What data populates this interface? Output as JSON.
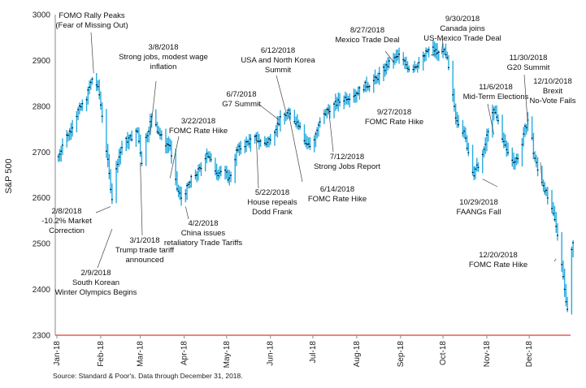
{
  "chart_data": {
    "type": "line",
    "style": "hi-lo bars (daily range) with close markers",
    "title": "",
    "xlabel": "",
    "ylabel": "S&P 500",
    "ylim": [
      2300,
      3000
    ],
    "yticks": [
      "2300",
      "2400",
      "2500",
      "2600",
      "2700",
      "2800",
      "2900",
      "3000"
    ],
    "xticks": [
      {
        "label": "Jan-18",
        "day": 0
      },
      {
        "label": "Feb-18",
        "day": 31
      },
      {
        "label": "Mar-18",
        "day": 59
      },
      {
        "label": "Apr-18",
        "day": 90
      },
      {
        "label": "May-18",
        "day": 120
      },
      {
        "label": "Jun-18",
        "day": 151
      },
      {
        "label": "Jul-18",
        "day": 181
      },
      {
        "label": "Aug-18",
        "day": 212
      },
      {
        "label": "Sep-18",
        "day": 243
      },
      {
        "label": "Oct-18",
        "day": 273
      },
      {
        "label": "Nov-18",
        "day": 304
      },
      {
        "label": "Dec-18",
        "day": 334
      }
    ],
    "grid": false,
    "legend": "none",
    "colors": {
      "bar": "#29ABE2",
      "close": "#000000",
      "baseline": "#E03C31"
    },
    "source": "Source: Standard & Poor's. Data through December 31, 2018.",
    "anchors": [
      [
        1,
        2690
      ],
      [
        5,
        2725
      ],
      [
        10,
        2750
      ],
      [
        15,
        2790
      ],
      [
        20,
        2810
      ],
      [
        26,
        2870
      ],
      [
        30,
        2825
      ],
      [
        33,
        2760
      ],
      [
        37,
        2650
      ],
      [
        39,
        2600
      ],
      [
        43,
        2680
      ],
      [
        47,
        2720
      ],
      [
        54,
        2735
      ],
      [
        57,
        2745
      ],
      [
        60,
        2680
      ],
      [
        63,
        2730
      ],
      [
        68,
        2785
      ],
      [
        71,
        2750
      ],
      [
        76,
        2720
      ],
      [
        80,
        2715
      ],
      [
        82,
        2660
      ],
      [
        85,
        2620
      ],
      [
        88,
        2600
      ],
      [
        92,
        2620
      ],
      [
        95,
        2640
      ],
      [
        98,
        2650
      ],
      [
        102,
        2665
      ],
      [
        106,
        2700
      ],
      [
        110,
        2670
      ],
      [
        114,
        2655
      ],
      [
        118,
        2660
      ],
      [
        122,
        2640
      ],
      [
        127,
        2700
      ],
      [
        132,
        2715
      ],
      [
        137,
        2725
      ],
      [
        141,
        2730
      ],
      [
        145,
        2720
      ],
      [
        149,
        2720
      ],
      [
        152,
        2740
      ],
      [
        156,
        2760
      ],
      [
        160,
        2780
      ],
      [
        164,
        2785
      ],
      [
        168,
        2770
      ],
      [
        172,
        2760
      ],
      [
        176,
        2720
      ],
      [
        180,
        2710
      ],
      [
        183,
        2740
      ],
      [
        187,
        2770
      ],
      [
        191,
        2790
      ],
      [
        195,
        2800
      ],
      [
        200,
        2810
      ],
      [
        205,
        2820
      ],
      [
        210,
        2825
      ],
      [
        214,
        2835
      ],
      [
        218,
        2845
      ],
      [
        222,
        2850
      ],
      [
        226,
        2860
      ],
      [
        230,
        2875
      ],
      [
        234,
        2890
      ],
      [
        238,
        2900
      ],
      [
        242,
        2910
      ],
      [
        246,
        2895
      ],
      [
        250,
        2880
      ],
      [
        254,
        2890
      ],
      [
        258,
        2900
      ],
      [
        262,
        2920
      ],
      [
        266,
        2925
      ],
      [
        270,
        2915
      ],
      [
        273,
        2925
      ],
      [
        276,
        2900
      ],
      [
        279,
        2840
      ],
      [
        282,
        2780
      ],
      [
        285,
        2760
      ],
      [
        288,
        2740
      ],
      [
        291,
        2700
      ],
      [
        295,
        2650
      ],
      [
        299,
        2680
      ],
      [
        302,
        2700
      ],
      [
        305,
        2750
      ],
      [
        309,
        2790
      ],
      [
        313,
        2760
      ],
      [
        316,
        2720
      ],
      [
        320,
        2690
      ],
      [
        324,
        2680
      ],
      [
        328,
        2700
      ],
      [
        331,
        2750
      ],
      [
        334,
        2780
      ],
      [
        337,
        2700
      ],
      [
        340,
        2660
      ],
      [
        344,
        2630
      ],
      [
        348,
        2590
      ],
      [
        352,
        2550
      ],
      [
        356,
        2490
      ],
      [
        359,
        2400
      ],
      [
        361,
        2360
      ],
      [
        363,
        2470
      ],
      [
        365,
        2500
      ]
    ],
    "annotations": [
      {
        "id": "fomo-rally-peaks",
        "lines": [
          "FOMO Rally Peaks",
          "(Fear of Missing Out)"
        ],
        "day": 26,
        "value": 2872
      },
      {
        "id": "market-correction",
        "lines": [
          "2/8/2018",
          "-10.2% Market",
          "Correction"
        ],
        "day": 38,
        "value": 2581
      },
      {
        "id": "winter-olympics",
        "lines": [
          "2/9/2018",
          "South Korean",
          "Winter Olympics Begins"
        ],
        "day": 39,
        "value": 2532
      },
      {
        "id": "trump-tariff",
        "lines": [
          "3/1/2018",
          "Trump trade tariff",
          "announced"
        ],
        "day": 59,
        "value": 2677
      },
      {
        "id": "strong-jobs-march",
        "lines": [
          "3/8/2018",
          "Strong jobs, modest wage",
          "inflation"
        ],
        "day": 66,
        "value": 2739
      },
      {
        "id": "fomc-march",
        "lines": [
          "3/22/2018",
          "FOMC Rate Hike"
        ],
        "day": 80,
        "value": 2643
      },
      {
        "id": "china-tariffs",
        "lines": [
          "4/2/2018",
          "China issues",
          "retaliatory  Trade Tariffs"
        ],
        "day": 91,
        "value": 2581
      },
      {
        "id": "g7-summit",
        "lines": [
          "6/7/2018",
          "G7 Summit"
        ],
        "day": 157,
        "value": 2770
      },
      {
        "id": "korea-summit",
        "lines": [
          "6/12/2018",
          "USA and North Korea",
          "Summit"
        ],
        "day": 162,
        "value": 2787
      },
      {
        "id": "dodd-frank",
        "lines": [
          "5/22/2018",
          "House repeals",
          "Dodd Frank"
        ],
        "day": 141,
        "value": 2733
      },
      {
        "id": "fomc-june",
        "lines": [
          "6/14/2018",
          "FOMC Rate Hike"
        ],
        "day": 164,
        "value": 2782
      },
      {
        "id": "strong-jobs-july",
        "lines": [
          "7/12/2018",
          "Strong Jobs Report"
        ],
        "day": 192,
        "value": 2798
      },
      {
        "id": "mexico-trade",
        "lines": [
          "8/27/2018",
          "Mexico Trade Deal"
        ],
        "day": 238,
        "value": 2897
      },
      {
        "id": "canada-joins",
        "lines": [
          "9/30/2018",
          "Canada joins",
          "US-Mexico Trade Deal"
        ],
        "day": 272,
        "value": 2914
      },
      {
        "id": "fomc-september",
        "lines": [
          "9/27/2018",
          "FOMC Rate Hike"
        ],
        "day": 269,
        "value": 2914
      },
      {
        "id": "midterm-elections",
        "lines": [
          "11/6/2018",
          "Mid-Term Elections"
        ],
        "day": 309,
        "value": 2738
      },
      {
        "id": "faangs-fall",
        "lines": [
          "10/29/2018",
          "FAANGs Fall"
        ],
        "day": 301,
        "value": 2641
      },
      {
        "id": "g20-summit",
        "lines": [
          "11/30/2018",
          "G20 Summit"
        ],
        "day": 333,
        "value": 2760
      },
      {
        "id": "brexit-vote",
        "lines": [
          "12/10/2018",
          "Brexit",
          "No-Vote Fails"
        ],
        "day": 343,
        "value": 2637
      },
      {
        "id": "fomc-december",
        "lines": [
          "12/20/2018",
          "FOMC Rate Hike"
        ],
        "day": 353,
        "value": 2467
      }
    ]
  }
}
